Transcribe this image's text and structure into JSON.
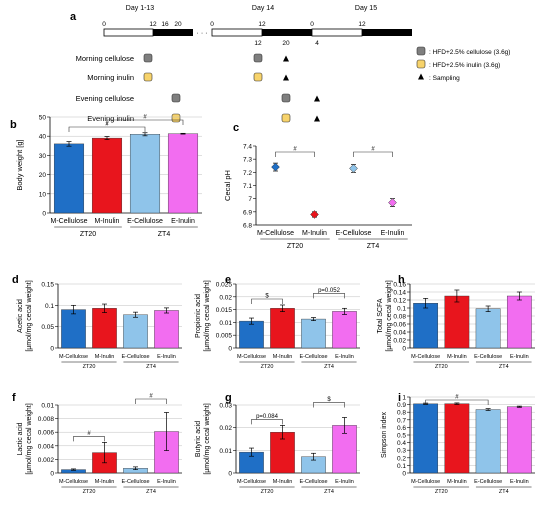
{
  "colors": {
    "m_cellulose": "#1f6fc6",
    "m_inulin": "#e8151d",
    "e_cellulose": "#8fc4ea",
    "e_inulin": "#f26df0",
    "cellulose_pellet": "#7f7f7f",
    "inulin_pellet": "#f7d36b",
    "axis": "#000000",
    "grid": "#bfbfbf",
    "bracket": "#333333"
  },
  "schedule": {
    "panel_label": "a",
    "day_labels": [
      "Day 1-13",
      "Day 14",
      "Day 15"
    ],
    "ticks_day1": [
      "0",
      "12",
      "16",
      "20"
    ],
    "ticks_day14": [
      "0",
      "12"
    ],
    "ticks_day15": [
      "0",
      "12"
    ],
    "feeding_times": [
      "12",
      "20",
      "4"
    ],
    "ellipsis": "· · ·",
    "rows": [
      "Morning cellulose",
      "Morning inulin",
      "Evening cellulose",
      "Evening inulin"
    ],
    "legend": [
      ": HFD+2.5% cellulose (3.6g)",
      ": HFD+2.5% inulin (3.6g)",
      ": Sampling"
    ]
  },
  "chart_data": [
    {
      "panel": "b",
      "type": "bar",
      "categories": [
        "M-Cellulose",
        "M-Inulin",
        "E-Cellulose",
        "E-Inulin"
      ],
      "values": [
        36.0,
        39.0,
        41.0,
        41.3
      ],
      "errors": [
        1.2,
        0.8,
        0.8,
        0.2
      ],
      "groups": [
        "ZT20",
        "ZT4"
      ],
      "ylabel": "Body weight [g]",
      "ylim": [
        0,
        50
      ],
      "yticks": [
        "0",
        "10",
        "20",
        "30",
        "40",
        "50"
      ],
      "grid": true,
      "significance": [
        {
          "from": 0,
          "to": 2,
          "label": "#"
        },
        {
          "from": 1,
          "to": 3,
          "label": "#"
        }
      ]
    },
    {
      "panel": "c",
      "type": "scatter",
      "categories": [
        "M-Cellulose",
        "M-Inulin",
        "E-Cellulose",
        "E-Inulin"
      ],
      "values": [
        7.24,
        6.88,
        7.23,
        6.97
      ],
      "errors": [
        0.03,
        0.02,
        0.03,
        0.03
      ],
      "groups": [
        "ZT20",
        "ZT4"
      ],
      "ylabel": "Cecal pH",
      "ylim": [
        6.8,
        7.4
      ],
      "yticks": [
        "6.8",
        "6.9",
        "7",
        "7.1",
        "7.2",
        "7.3",
        "7.4"
      ],
      "grid": false,
      "significance": [
        {
          "from": 0,
          "to": 1,
          "label": "#"
        },
        {
          "from": 2,
          "to": 3,
          "label": "#"
        }
      ]
    },
    {
      "panel": "d",
      "type": "bar",
      "categories": [
        "M-Cellulose",
        "M-Inulin",
        "E-Cellulose",
        "E-Inulin"
      ],
      "values": [
        0.09,
        0.093,
        0.078,
        0.088
      ],
      "errors": [
        0.01,
        0.01,
        0.006,
        0.006
      ],
      "groups": [
        "ZT20",
        "ZT4"
      ],
      "ylabel": "Acetic acid",
      "ylabel2": "[µmol/mg cecal weight]",
      "ylim": [
        0,
        0.15
      ],
      "yticks": [
        "0",
        "0.05",
        "0.1",
        "0.15"
      ],
      "grid": true,
      "significance": []
    },
    {
      "panel": "e",
      "type": "bar",
      "categories": [
        "M-Cellulose",
        "M-Inulin",
        "E-Cellulose",
        "E-Inulin"
      ],
      "values": [
        0.0105,
        0.0155,
        0.0113,
        0.0143
      ],
      "errors": [
        0.0012,
        0.0013,
        0.0006,
        0.0012
      ],
      "groups": [
        "ZT20",
        "ZT4"
      ],
      "ylabel": "Propionic acid",
      "ylabel2": "[µmol/mg cecal weight]",
      "ylim": [
        0,
        0.025
      ],
      "yticks": [
        "0",
        "0.005",
        "0.01",
        "0.015",
        "0.02",
        "0.025"
      ],
      "grid": true,
      "significance": [
        {
          "from": 0,
          "to": 1,
          "label": "$"
        },
        {
          "from": 2,
          "to": 3,
          "label": "p=0.052"
        }
      ]
    },
    {
      "panel": "h",
      "type": "bar",
      "categories": [
        "M-Cellulose",
        "M-Inulin",
        "E-Cellulose",
        "E-Inulin"
      ],
      "values": [
        0.112,
        0.13,
        0.098,
        0.13
      ],
      "errors": [
        0.012,
        0.015,
        0.007,
        0.01
      ],
      "groups": [
        "ZT20",
        "ZT4"
      ],
      "ylabel": "Total SCFA",
      "ylabel2": "[µmol/mg cecal weight]",
      "ylim": [
        0,
        0.16
      ],
      "yticks": [
        "0",
        "0.02",
        "0.04",
        "0.06",
        "0.08",
        "0.1",
        "0.12",
        "0.14",
        "0.16"
      ],
      "grid": true,
      "significance": []
    },
    {
      "panel": "f",
      "type": "bar",
      "categories": [
        "M-Cellulose",
        "M-Inulin",
        "E-Cellulose",
        "E-Inulin"
      ],
      "values": [
        0.0005,
        0.003,
        0.0007,
        0.0061
      ],
      "errors": [
        0.0001,
        0.0015,
        0.0002,
        0.0028
      ],
      "groups": [
        "ZT20",
        "ZT4"
      ],
      "ylabel": "Lactic acid",
      "ylabel2": "[µmol/mg cecal weight]",
      "ylim": [
        0,
        0.01
      ],
      "yticks": [
        "0",
        "0.002",
        "0.004",
        "0.006",
        "0.008",
        "0.01"
      ],
      "grid": true,
      "significance": [
        {
          "from": 0,
          "to": 1,
          "label": "#"
        },
        {
          "from": 2,
          "to": 3,
          "label": "#"
        }
      ]
    },
    {
      "panel": "g",
      "type": "bar",
      "categories": [
        "M-Cellulose",
        "M-Inulin",
        "E-Cellulose",
        "E-Inulin"
      ],
      "values": [
        0.0092,
        0.018,
        0.0072,
        0.021
      ],
      "errors": [
        0.0018,
        0.003,
        0.0015,
        0.0035
      ],
      "groups": [
        "ZT20",
        "ZT4"
      ],
      "ylabel": "Butyric acid",
      "ylabel2": "[µmol/mg cecal weight]",
      "ylim": [
        0,
        0.03
      ],
      "yticks": [
        "0",
        "0.01",
        "0.02",
        "0.03"
      ],
      "grid": true,
      "significance": [
        {
          "from": 0,
          "to": 1,
          "label": "p=0.084"
        },
        {
          "from": 2,
          "to": 3,
          "label": "$"
        }
      ]
    },
    {
      "panel": "i",
      "type": "bar",
      "categories": [
        "M-Cellulose",
        "M-Inulin",
        "E-Cellulose",
        "E-Inulin"
      ],
      "values": [
        0.91,
        0.912,
        0.835,
        0.872
      ],
      "errors": [
        0.01,
        0.01,
        0.012,
        0.008
      ],
      "groups": [
        "ZT20",
        "ZT4"
      ],
      "ylabel": "Simpson index",
      "ylim": [
        0,
        1
      ],
      "yticks": [
        "0",
        "0.1",
        "0.2",
        "0.3",
        "0.4",
        "0.5",
        "0.6",
        "0.7",
        "0.8",
        "0.9",
        "1"
      ],
      "grid": true,
      "significance": [
        {
          "from": 0,
          "to": 2,
          "label": "#"
        }
      ]
    }
  ]
}
